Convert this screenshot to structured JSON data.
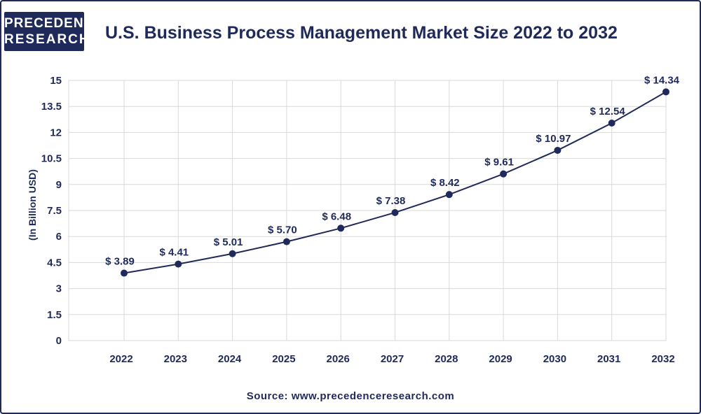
{
  "brand": {
    "line1": "PRECEDENCE",
    "line2": "RESEARCH"
  },
  "source": "Source: www.precedenceresearch.com",
  "colors": {
    "primary": "#1f2a5a",
    "grid": "#d9d9d9",
    "background": "#ffffff"
  },
  "chart_data": {
    "type": "line",
    "title": "U.S. Business Process Management Market Size 2022 to 2032",
    "xlabel": "",
    "ylabel": "(In Billion USD)",
    "categories": [
      "2022",
      "2023",
      "2024",
      "2025",
      "2026",
      "2027",
      "2028",
      "2029",
      "2030",
      "2031",
      "2032"
    ],
    "values": [
      3.89,
      4.41,
      5.01,
      5.7,
      6.48,
      7.38,
      8.42,
      9.61,
      10.97,
      12.54,
      14.34
    ],
    "data_labels": [
      "$ 3.89",
      "$ 4.41",
      "$ 5.01",
      "$ 5.70",
      "$ 6.48",
      "$ 7.38",
      "$ 8.42",
      "$ 9.61",
      "$ 10.97",
      "$ 12.54",
      "$ 14.34"
    ],
    "ylim": [
      0,
      15
    ],
    "yticks": [
      "0",
      "1.5",
      "3",
      "4.5",
      "6",
      "7.5",
      "9",
      "10.5",
      "12",
      "13.5",
      "15"
    ],
    "grid": true,
    "legend": "none"
  }
}
